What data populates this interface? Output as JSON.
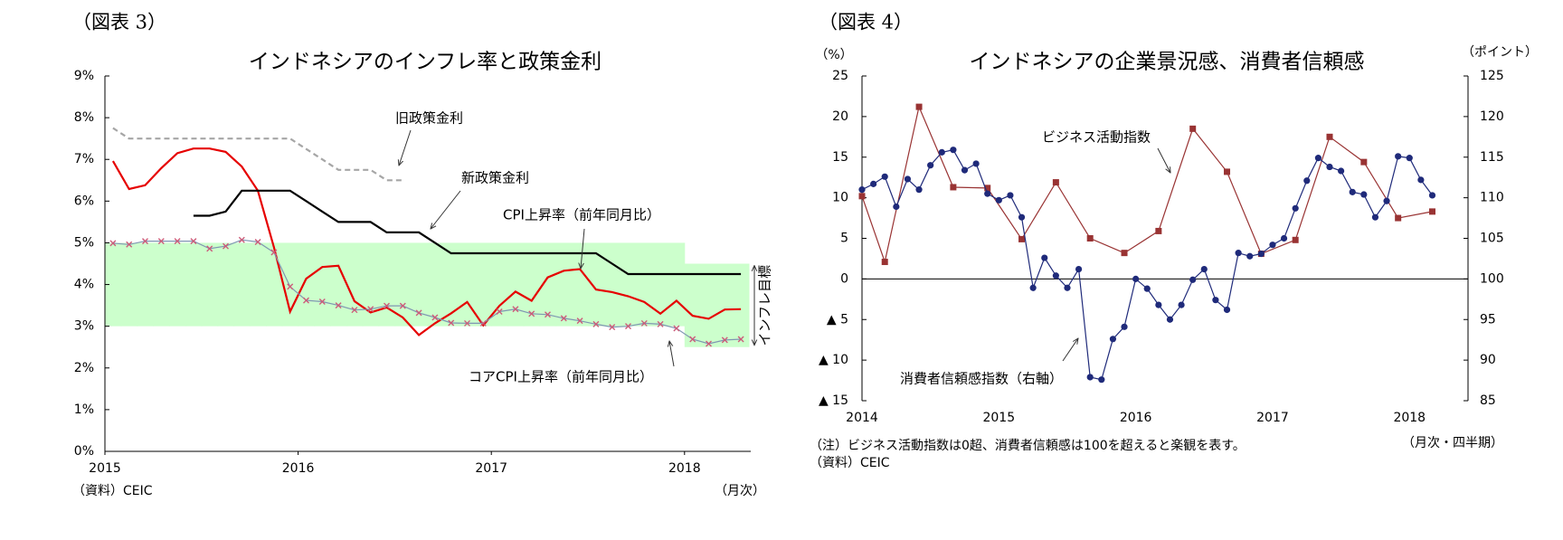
{
  "chart_data": [
    {
      "type": "line",
      "label": "（図表 3）",
      "title": "インドネシアのインフレ率と政策金利",
      "categories": [
        "2015",
        null,
        null,
        null,
        null,
        null,
        null,
        null,
        null,
        null,
        null,
        null,
        "2016",
        null,
        null,
        null,
        null,
        null,
        null,
        null,
        null,
        null,
        null,
        null,
        "2017",
        null,
        null,
        null,
        null,
        null,
        null,
        null,
        null,
        null,
        null,
        null,
        "2018",
        null,
        null,
        null
      ],
      "series": [
        {
          "name": "CPI上昇率（前年同月比）",
          "color": "#e60000",
          "values": [
            6.96,
            6.29,
            6.38,
            6.79,
            7.15,
            7.26,
            7.26,
            7.18,
            6.83,
            6.25,
            4.89,
            3.35,
            4.14,
            4.42,
            4.45,
            3.6,
            3.33,
            3.45,
            3.21,
            2.79,
            3.07,
            3.31,
            3.58,
            3.02,
            3.49,
            3.83,
            3.61,
            4.17,
            4.33,
            4.37,
            3.88,
            3.82,
            3.72,
            3.58,
            3.3,
            3.61,
            3.25,
            3.18,
            3.4,
            3.41
          ]
        },
        {
          "name": "コアCPI上昇率（前年同月比）",
          "color": "#7f96b2",
          "marker": "x",
          "marker_color": "#cc5c7a",
          "values": [
            4.99,
            4.96,
            5.04,
            5.04,
            5.04,
            5.04,
            4.86,
            4.92,
            5.07,
            5.02,
            4.77,
            3.95,
            3.62,
            3.59,
            3.5,
            3.39,
            3.41,
            3.49,
            3.49,
            3.32,
            3.21,
            3.08,
            3.07,
            3.07,
            3.35,
            3.41,
            3.3,
            3.28,
            3.19,
            3.13,
            3.05,
            2.98,
            3.0,
            3.07,
            3.05,
            2.95,
            2.69,
            2.58,
            2.67,
            2.69
          ]
        },
        {
          "name": "旧政策金利",
          "color": "#a6a6a6",
          "line_style": "dashed",
          "values": [
            7.75,
            7.5,
            7.5,
            7.5,
            7.5,
            7.5,
            7.5,
            7.5,
            7.5,
            7.5,
            7.5,
            7.5,
            7.25,
            7.0,
            6.75,
            6.75,
            6.75,
            6.5,
            6.5,
            null,
            null,
            null,
            null,
            null,
            null,
            null,
            null,
            null,
            null,
            null,
            null,
            null,
            null,
            null,
            null,
            null,
            null,
            null,
            null,
            null
          ]
        },
        {
          "name": "新政策金利",
          "color": "#000000",
          "values": [
            null,
            null,
            null,
            null,
            null,
            5.65,
            5.65,
            5.75,
            6.25,
            6.25,
            6.25,
            6.25,
            6.0,
            5.75,
            5.5,
            5.5,
            5.5,
            5.25,
            5.25,
            5.25,
            5.0,
            4.75,
            4.75,
            4.75,
            4.75,
            4.75,
            4.75,
            4.75,
            4.75,
            4.75,
            4.75,
            4.5,
            4.25,
            4.25,
            4.25,
            4.25,
            4.25,
            4.25,
            4.25,
            4.25
          ]
        }
      ],
      "target": {
        "name": "インフレ目標",
        "color": "#ccffcc",
        "lower": [
          3,
          3,
          3,
          3,
          3,
          3,
          3,
          3,
          3,
          3,
          3,
          3,
          3,
          3,
          3,
          3,
          3,
          3,
          3,
          3,
          3,
          3,
          3,
          3,
          3,
          3,
          3,
          3,
          3,
          3,
          3,
          3,
          3,
          3,
          3,
          3,
          2.5,
          2.5,
          2.5,
          2.5
        ],
        "upper": [
          5,
          5,
          5,
          5,
          5,
          5,
          5,
          5,
          5,
          5,
          5,
          5,
          5,
          5,
          5,
          5,
          5,
          5,
          5,
          5,
          5,
          5,
          5,
          5,
          5,
          5,
          5,
          5,
          5,
          5,
          5,
          5,
          5,
          5,
          5,
          5,
          4.5,
          4.5,
          4.5,
          4.5
        ]
      },
      "ylim": [
        0,
        9
      ],
      "yticks": [
        {
          "value": 0,
          "label": "0%"
        },
        {
          "value": 1,
          "label": "1%"
        },
        {
          "value": 2,
          "label": "2%"
        },
        {
          "value": 3,
          "label": "3%"
        },
        {
          "value": 4,
          "label": "4%"
        },
        {
          "value": 5,
          "label": "5%"
        },
        {
          "value": 6,
          "label": "6%"
        },
        {
          "value": 7,
          "label": "7%"
        },
        {
          "value": 8,
          "label": "8%"
        },
        {
          "value": 9,
          "label": "9%"
        }
      ],
      "source": "（資料）CEIC",
      "x_unit": "（月次）"
    },
    {
      "type": "line",
      "label": "（図表 4）",
      "title": "インドネシアの企業景況感、消費者信頼感",
      "y_unit": "（%）",
      "y2_unit": "（ポイント）",
      "categories": [
        "2014",
        null,
        null,
        null,
        null,
        null,
        null,
        null,
        null,
        null,
        null,
        null,
        "2015",
        null,
        null,
        null,
        null,
        null,
        null,
        null,
        null,
        null,
        null,
        null,
        "2016",
        null,
        null,
        null,
        null,
        null,
        null,
        null,
        null,
        null,
        null,
        null,
        "2017",
        null,
        null,
        null,
        null,
        null,
        null,
        null,
        null,
        null,
        null,
        null,
        "2018",
        null,
        null
      ],
      "series": [
        {
          "name": "ビジネス活動指数",
          "color": "#993333",
          "marker": "square",
          "connect_gaps": true,
          "values": [
            10.2,
            null,
            2.1,
            null,
            null,
            21.2,
            null,
            null,
            11.3,
            null,
            null,
            11.2,
            null,
            null,
            4.9,
            null,
            null,
            11.9,
            null,
            null,
            5.0,
            null,
            null,
            3.2,
            null,
            null,
            5.9,
            null,
            null,
            18.5,
            null,
            null,
            13.2,
            null,
            null,
            3.1,
            null,
            null,
            4.8,
            null,
            null,
            17.5,
            null,
            null,
            14.4,
            null,
            null,
            7.5,
            null,
            null,
            8.3
          ]
        },
        {
          "name": "消費者信頼感指数（右軸）",
          "color": "#1f2a7a",
          "marker": "circle",
          "axis": "y2",
          "values": [
            111.0,
            111.7,
            112.6,
            108.9,
            112.3,
            111.0,
            114.0,
            115.6,
            115.9,
            113.4,
            114.2,
            110.5,
            109.7,
            110.3,
            107.6,
            98.9,
            102.6,
            100.4,
            98.9,
            101.2,
            87.9,
            87.6,
            92.6,
            94.1,
            100.0,
            98.8,
            96.8,
            95.0,
            96.8,
            99.9,
            101.2,
            97.4,
            96.2,
            103.2,
            102.8,
            103.1,
            104.2,
            105.0,
            108.7,
            112.1,
            114.9,
            113.8,
            113.3,
            110.7,
            110.4,
            107.6,
            109.6,
            115.1,
            114.9,
            112.2,
            110.3
          ]
        }
      ],
      "ylim": [
        -15,
        25
      ],
      "yticks": [
        {
          "value": -15,
          "label": "▲ 15"
        },
        {
          "value": -10,
          "label": "▲ 10"
        },
        {
          "value": -5,
          "label": "▲ 5"
        },
        0,
        5,
        10,
        15,
        20,
        25
      ],
      "y2lim": [
        85,
        125
      ],
      "y2ticks": [
        85,
        90,
        95,
        100,
        105,
        110,
        115,
        120,
        125
      ],
      "note": "（注）ビジネス活動指数は0超、消費者信頼感は100を超えると楽観を表す。",
      "source": "（資料）CEIC",
      "x_unit": "（月次・四半期）"
    }
  ]
}
